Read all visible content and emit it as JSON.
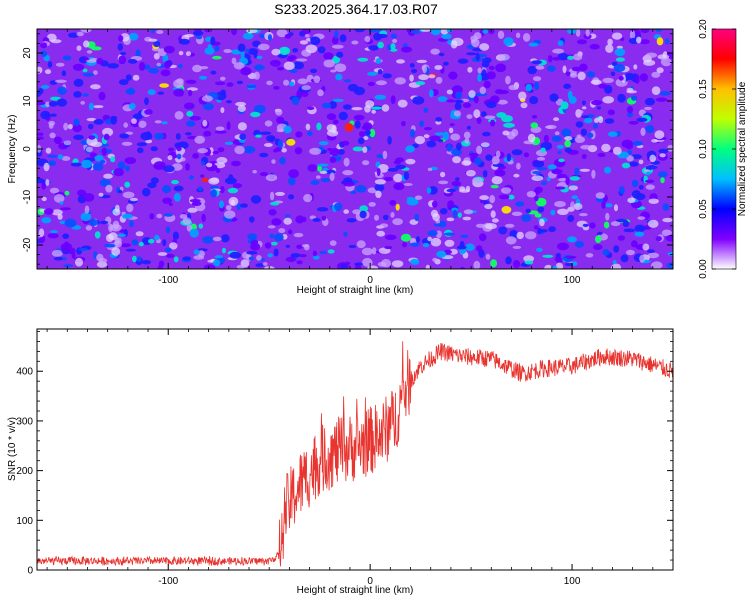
{
  "title": "S233.2025.364.17.03.R07",
  "chart_data": [
    {
      "type": "heatmap",
      "xlabel": "Height of straight line (km)",
      "ylabel": "Frequency (Hz)",
      "xlim": [
        -165,
        150
      ],
      "ylim": [
        -25,
        25
      ],
      "xticks": [
        -100,
        0,
        100
      ],
      "yticks": [
        -20,
        -10,
        0,
        10,
        20
      ],
      "colorbar": {
        "label": "Normalized spectral amplitude",
        "range": [
          0,
          0.2
        ],
        "ticks": [
          "0.00",
          "0.05",
          "0.10",
          "0.15",
          "0.20"
        ],
        "colors": [
          "#ffffff",
          "#8000ff",
          "#0000ff",
          "#00c0ff",
          "#00ff80",
          "#c0ff00",
          "#ffc000",
          "#ff0000",
          "#ff0080"
        ]
      },
      "description": "Random speckled spectral amplitude, mostly 0.03-0.08, sparse peaks near 0.15-0.2"
    },
    {
      "type": "line",
      "xlabel": "Height of straight line (km)",
      "ylabel": "SNR (10 * v/v)",
      "xlim": [
        -165,
        150
      ],
      "ylim": [
        0,
        485
      ],
      "xticks": [
        -100,
        0,
        100
      ],
      "yticks": [
        0,
        100,
        200,
        300,
        400
      ],
      "line_color": "#e8332e",
      "series_trend": [
        {
          "x": -165,
          "y": 18
        },
        {
          "x": -50,
          "y": 18
        },
        {
          "x": -45,
          "y": 30
        },
        {
          "x": -42,
          "y": 120
        },
        {
          "x": -35,
          "y": 170
        },
        {
          "x": -25,
          "y": 220
        },
        {
          "x": -15,
          "y": 240
        },
        {
          "x": -5,
          "y": 250
        },
        {
          "x": 5,
          "y": 270
        },
        {
          "x": 12,
          "y": 300
        },
        {
          "x": 18,
          "y": 370
        },
        {
          "x": 25,
          "y": 410
        },
        {
          "x": 35,
          "y": 440
        },
        {
          "x": 45,
          "y": 430
        },
        {
          "x": 60,
          "y": 425
        },
        {
          "x": 75,
          "y": 395
        },
        {
          "x": 85,
          "y": 405
        },
        {
          "x": 100,
          "y": 410
        },
        {
          "x": 115,
          "y": 430
        },
        {
          "x": 130,
          "y": 425
        },
        {
          "x": 150,
          "y": 400
        }
      ]
    }
  ]
}
